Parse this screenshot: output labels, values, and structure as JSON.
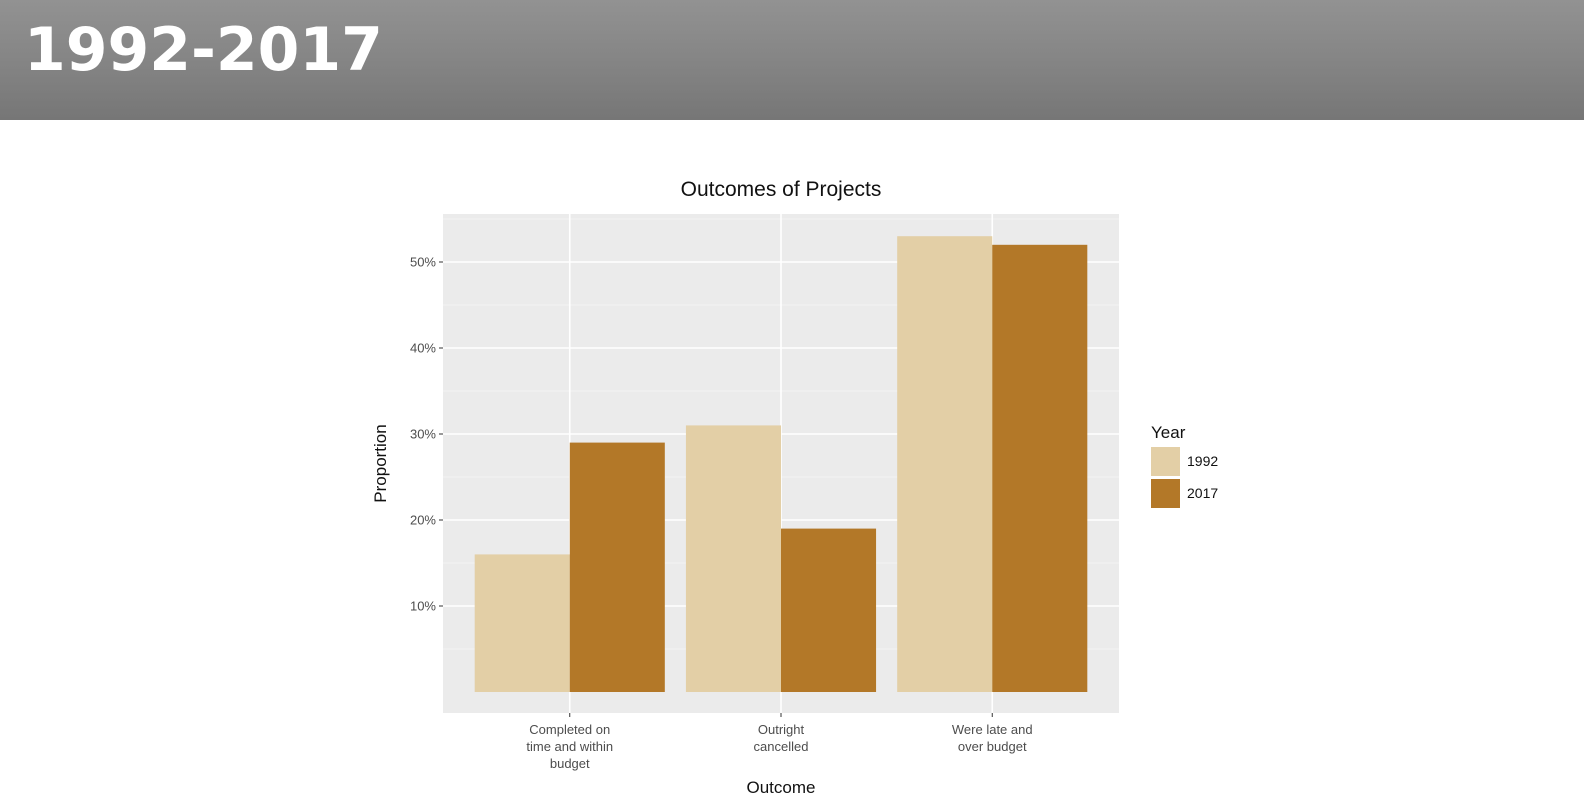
{
  "header": {
    "title": "1992-2017"
  },
  "chart_data": {
    "type": "bar",
    "title": "Outcomes of Projects",
    "xlabel": "Outcome",
    "ylabel": "Proportion",
    "categories": [
      [
        "Completed on",
        "time and within",
        "budget"
      ],
      [
        "Outright",
        "cancelled"
      ],
      [
        "Were late and",
        "over budget"
      ]
    ],
    "series": [
      {
        "name": "1992",
        "color": "#e3cfa6",
        "values": [
          16,
          31,
          53
        ]
      },
      {
        "name": "2017",
        "color": "#b37828",
        "values": [
          29,
          19,
          52
        ]
      }
    ],
    "yticks": [
      10,
      20,
      30,
      40,
      50
    ],
    "ytick_suffix": "%",
    "ylim": [
      0,
      55.5
    ],
    "grid": true,
    "panel_background": "#ebebeb",
    "legend": {
      "title": "Year",
      "placement": "right"
    }
  }
}
